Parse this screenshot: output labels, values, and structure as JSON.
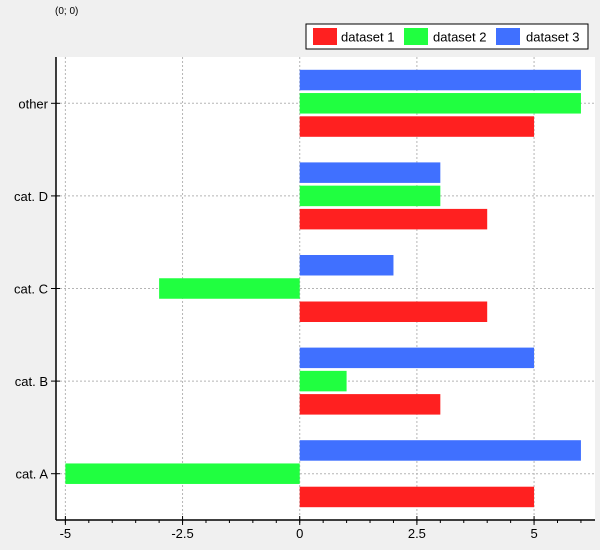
{
  "readout": "(0; 0)",
  "chart_data": {
    "type": "bar",
    "orientation": "horizontal",
    "title": "",
    "xlabel": "",
    "ylabel": "",
    "categories": [
      "cat. A",
      "cat. B",
      "cat. C",
      "cat. D",
      "other"
    ],
    "series": [
      {
        "name": "dataset 1",
        "values": [
          5,
          3,
          4,
          4,
          5
        ],
        "color": "#ff2020"
      },
      {
        "name": "dataset 2",
        "values": [
          -5,
          1,
          -3,
          3,
          6
        ],
        "color": "#20ff40"
      },
      {
        "name": "dataset 3",
        "values": [
          6,
          5,
          2,
          3,
          6
        ],
        "color": "#4070ff"
      }
    ],
    "xlim": [
      -5.2,
      6.3
    ],
    "xticks": [
      -5,
      -2.5,
      0,
      2.5,
      5
    ],
    "xtick_labels": [
      "-5",
      "-2.5",
      "0",
      "2.5",
      "5"
    ],
    "grid": true,
    "legend_position": "top-right"
  }
}
